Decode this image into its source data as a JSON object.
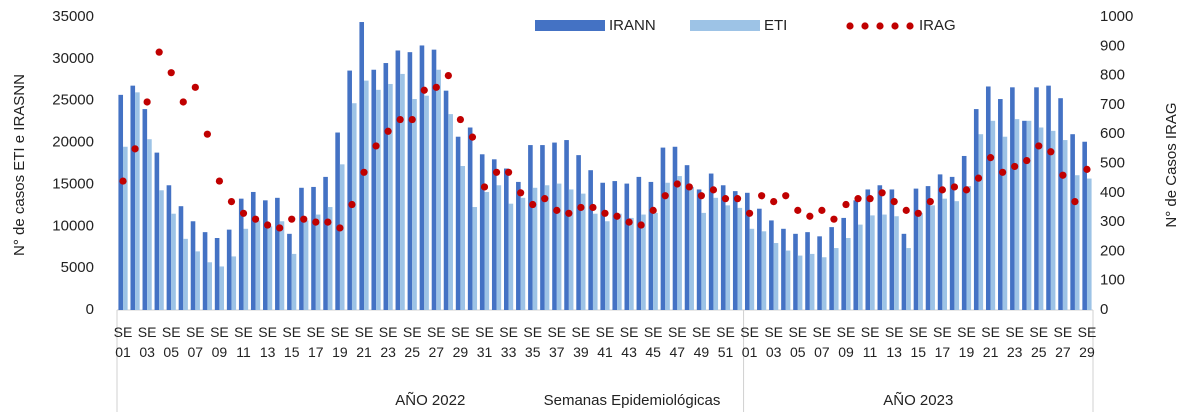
{
  "chart_data": {
    "type": "bar_line",
    "y_label": "N° de casos ETI e IRASNN",
    "y2_label": "N° de Casos IRAG",
    "x_label": "Semanas Epidemiológicas",
    "x_groups": [
      "AÑO 2022",
      "AÑO 2023"
    ],
    "legend": "top",
    "categories": [
      "SE 01",
      null,
      "SE 03",
      null,
      "SE 05",
      null,
      "SE 07",
      null,
      "SE 09",
      null,
      "SE 11",
      null,
      "SE 13",
      null,
      "SE 15",
      null,
      "SE 17",
      null,
      "SE 19",
      null,
      "SE 21",
      null,
      "SE 23",
      null,
      "SE 25",
      null,
      "SE 27",
      null,
      "SE 29",
      null,
      "SE 31",
      null,
      "SE 33",
      null,
      "SE 35",
      null,
      "SE 37",
      null,
      "SE 39",
      null,
      "SE 41",
      null,
      "SE 43",
      null,
      "SE 45",
      null,
      "SE 47",
      null,
      "SE 49",
      null,
      "SE 51",
      null,
      "SE 01",
      null,
      "SE 03",
      null,
      "SE 05",
      null,
      "SE 07",
      null,
      "SE 09",
      null,
      "SE 11",
      null,
      "SE 13",
      null,
      "SE 15",
      null,
      "SE 17",
      null,
      "SE 19",
      null,
      "SE 21",
      null,
      "SE 23",
      null,
      "SE 25",
      null,
      "SE 27",
      null,
      "SE 29"
    ],
    "series": [
      {
        "name": "IRANN",
        "color": "#4472c4",
        "kind": "bar",
        "values": [
          25700,
          26800,
          24000,
          18800,
          14900,
          12400,
          10600,
          9300,
          8600,
          9600,
          13300,
          14100,
          13100,
          13400,
          9100,
          14600,
          14700,
          15900,
          21200,
          28600,
          34400,
          28700,
          29500,
          31000,
          30800,
          31600,
          31100,
          26200,
          20700,
          21800,
          18600,
          18000,
          16900,
          15300,
          19700,
          19700,
          20000,
          20300,
          18500,
          16700,
          15200,
          15400,
          15100,
          15900,
          15300,
          19400,
          19500,
          17300,
          14400,
          16300,
          14900,
          14200,
          14000,
          12100,
          10700,
          9700,
          9100,
          9300,
          8800,
          9900,
          11000,
          13100,
          14400,
          14900,
          14400,
          9100,
          14500,
          14800,
          16200,
          15900,
          18400,
          24000,
          26700,
          25200,
          26600,
          22600,
          26600,
          26800,
          25300,
          21000,
          20100
        ]
      },
      {
        "name": "ETI",
        "color": "#9dc3e6",
        "kind": "bar",
        "values": [
          19500,
          26000,
          20400,
          14300,
          11500,
          8500,
          7000,
          5700,
          5200,
          6400,
          9700,
          10700,
          10000,
          10600,
          6700,
          10700,
          11400,
          12300,
          17400,
          24700,
          27400,
          26300,
          27000,
          28200,
          25200,
          25600,
          28700,
          23400,
          17200,
          12300,
          14100,
          14900,
          12700,
          13400,
          14600,
          14900,
          15100,
          14400,
          13900,
          11500,
          10600,
          11500,
          11000,
          11400,
          11600,
          15200,
          16000,
          14700,
          11600,
          13400,
          12500,
          12200,
          9700,
          9400,
          8000,
          7100,
          6500,
          6700,
          6300,
          7400,
          8600,
          10200,
          11300,
          11400,
          11200,
          7400,
          11600,
          12500,
          13300,
          13000,
          14800,
          21000,
          22600,
          20700,
          22800,
          22600,
          21800,
          21400,
          20300,
          16100,
          15700
        ]
      },
      {
        "name": "IRAG",
        "color": "#c00000",
        "kind": "dots",
        "axis": "y2",
        "values": [
          440,
          550,
          710,
          880,
          810,
          710,
          760,
          600,
          440,
          370,
          330,
          310,
          290,
          280,
          310,
          310,
          300,
          300,
          280,
          360,
          470,
          560,
          610,
          650,
          650,
          750,
          760,
          800,
          650,
          590,
          420,
          470,
          470,
          400,
          360,
          380,
          340,
          330,
          350,
          350,
          330,
          320,
          300,
          290,
          340,
          390,
          430,
          420,
          390,
          410,
          380,
          380,
          330,
          390,
          370,
          390,
          340,
          320,
          340,
          310,
          360,
          380,
          380,
          400,
          370,
          340,
          330,
          370,
          410,
          420,
          410,
          450,
          520,
          470,
          490,
          510,
          560,
          540,
          460,
          370,
          480
        ]
      }
    ],
    "ylim": [
      0,
      35000
    ],
    "yticks": [
      0,
      5000,
      10000,
      15000,
      20000,
      25000,
      30000,
      35000
    ],
    "y2lim": [
      0,
      1000
    ],
    "y2ticks": [
      0,
      100,
      200,
      300,
      400,
      500,
      600,
      700,
      800,
      900,
      1000
    ]
  }
}
